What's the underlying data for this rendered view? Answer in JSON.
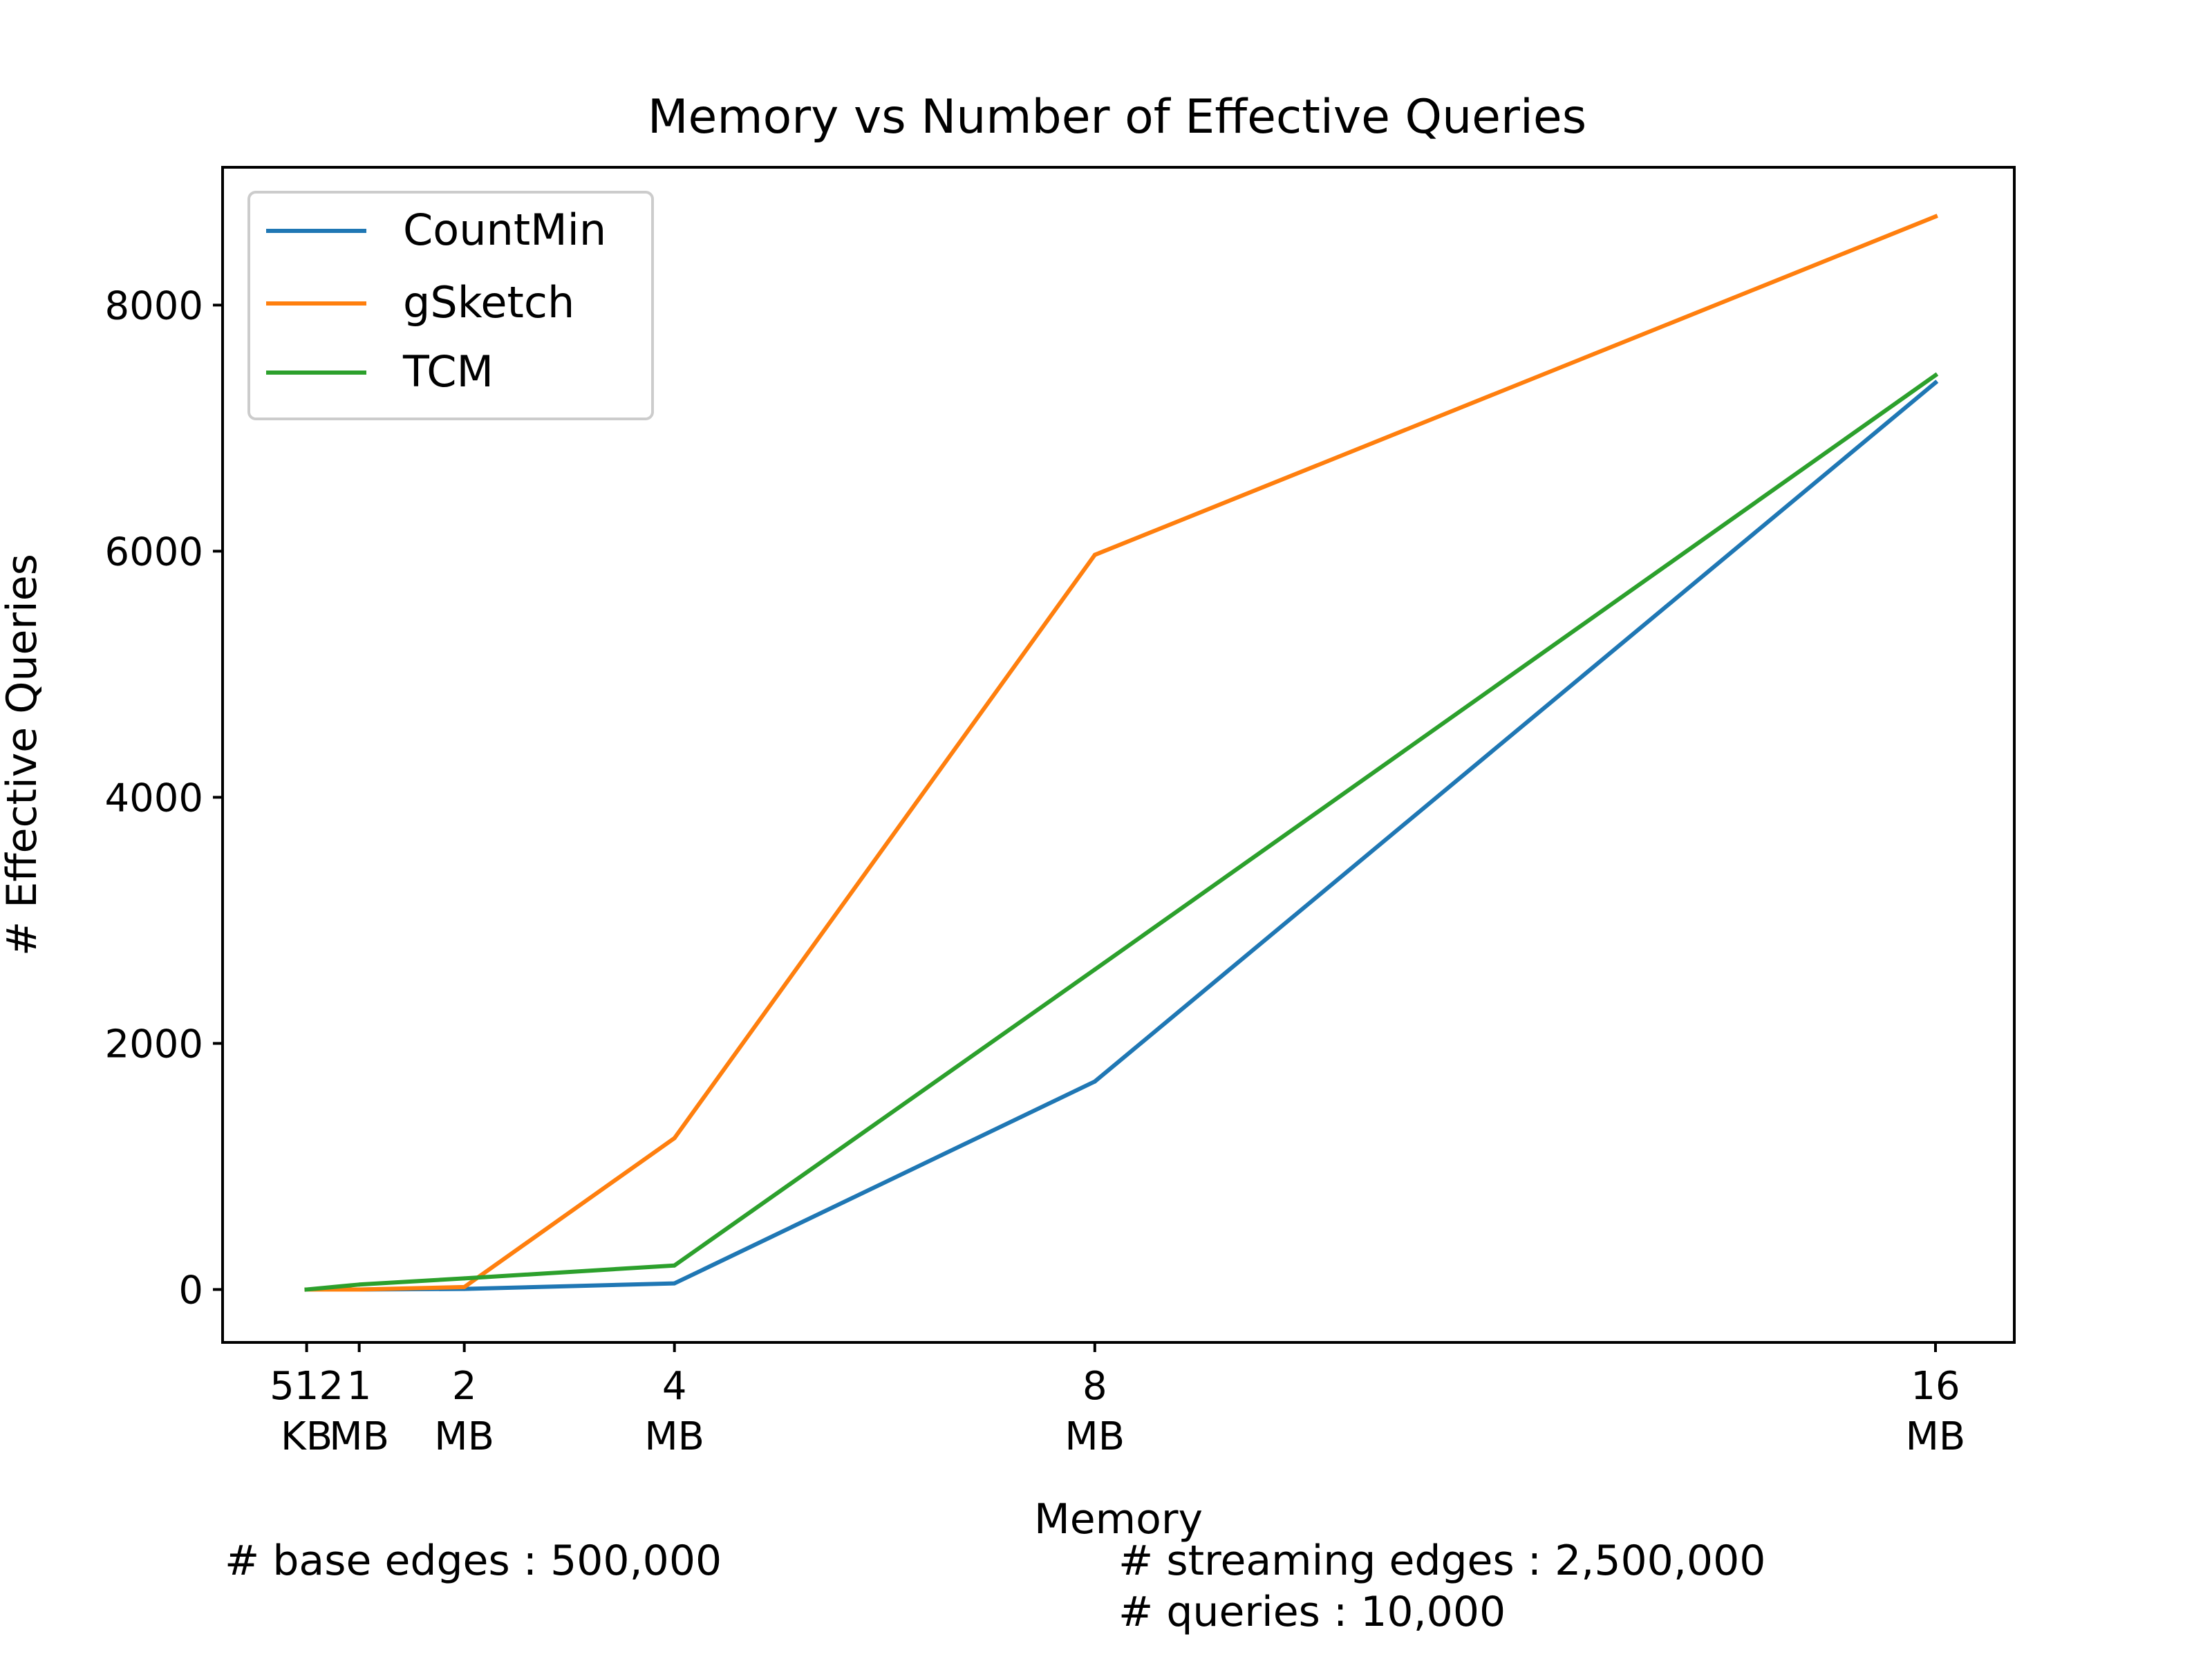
{
  "chart_data": {
    "type": "line",
    "title": "Memory vs Number of Effective Queries",
    "xlabel": "Memory",
    "ylabel": "# Effective Queries",
    "x": [
      0.5,
      1,
      2,
      4,
      8,
      16
    ],
    "x_tick_labels": [
      [
        "512",
        "KB"
      ],
      [
        "1",
        "MB"
      ],
      [
        "2",
        "MB"
      ],
      [
        "4",
        "MB"
      ],
      [
        "8",
        "MB"
      ],
      [
        "16",
        "MB"
      ]
    ],
    "xlim": [
      -0.3,
      16.75
    ],
    "ylim": [
      -430,
      9120
    ],
    "y_ticks": [
      0,
      2000,
      4000,
      6000,
      8000
    ],
    "series": [
      {
        "name": "CountMin",
        "color": "#1f77b4",
        "values": [
          0,
          0,
          5,
          50,
          1690,
          7370
        ]
      },
      {
        "name": "gSketch",
        "color": "#ff7f0e",
        "values": [
          0,
          0,
          20,
          1230,
          5970,
          8720
        ]
      },
      {
        "name": "TCM",
        "color": "#2ca02c",
        "values": [
          0,
          40,
          90,
          195,
          2600,
          7430
        ]
      }
    ],
    "legend_position": "upper-left",
    "grid": false
  },
  "notes": {
    "base_edges": "# base edges : 500,000",
    "streaming_edges": "# streaming edges : 2,500,000",
    "queries": "# queries : 10,000"
  }
}
